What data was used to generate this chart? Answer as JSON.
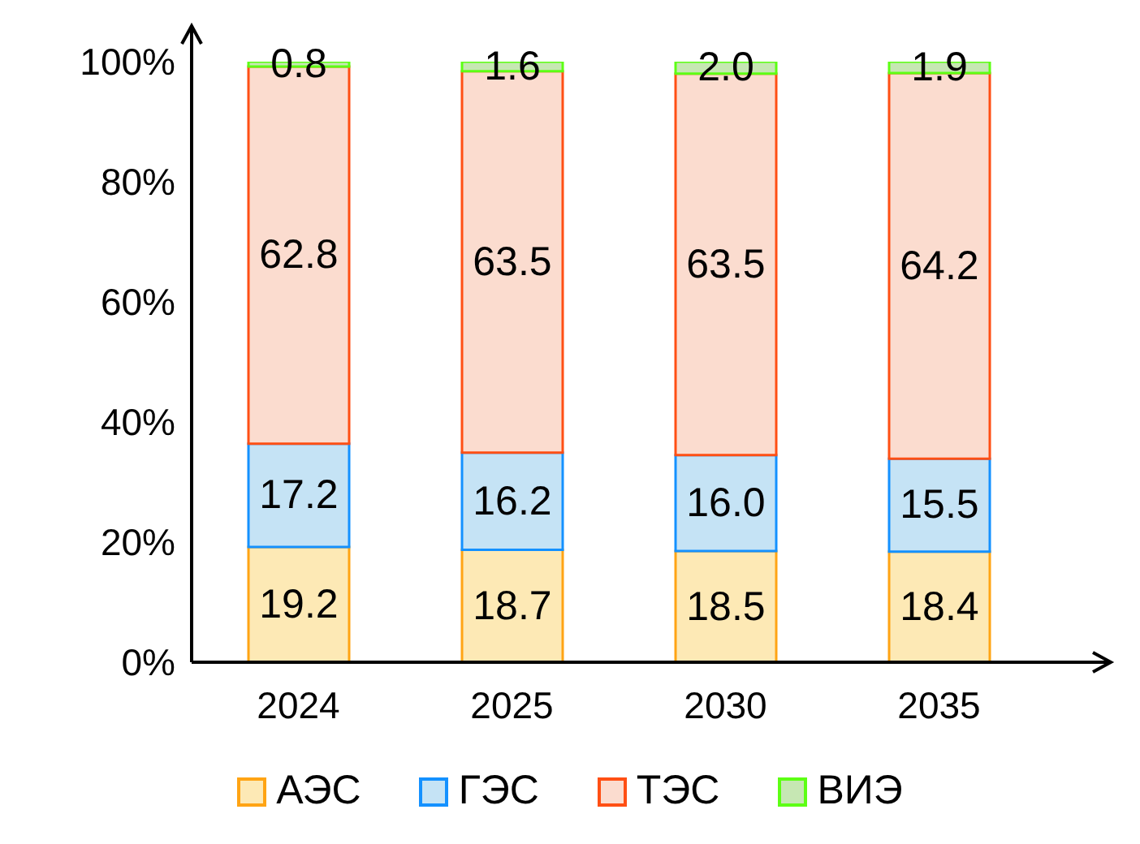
{
  "chart_data": {
    "type": "bar",
    "stacked": true,
    "categories": [
      "2024",
      "2025",
      "2030",
      "2035"
    ],
    "series": [
      {
        "name": "АЭС",
        "color": "#fde9b5",
        "values": [
          19.2,
          18.7,
          18.5,
          18.4
        ],
        "value_labels": [
          "19.2",
          "18.7",
          "18.5",
          "18.4"
        ]
      },
      {
        "name": "ГЭС",
        "color": "#c5e3f5",
        "values": [
          17.2,
          16.2,
          16.0,
          15.5
        ],
        "value_labels": [
          "17.2",
          "16.2",
          "16.0",
          "15.5"
        ]
      },
      {
        "name": "ТЭС",
        "color": "#fbdccf",
        "values": [
          62.8,
          63.5,
          63.5,
          64.2
        ],
        "value_labels": [
          "62.8",
          "63.5",
          "63.5",
          "64.2"
        ]
      },
      {
        "name": "ВИЭ",
        "color": "#c6e7b3",
        "values": [
          0.8,
          1.6,
          2.0,
          1.9
        ],
        "value_labels": [
          "0.8",
          "1.6",
          "2.0",
          "1.9"
        ]
      }
    ],
    "ylim": [
      0,
      100
    ],
    "yticks": [
      {
        "value": 0,
        "label": "0%"
      },
      {
        "value": 20,
        "label": "20%"
      },
      {
        "value": 40,
        "label": "40%"
      },
      {
        "value": 60,
        "label": "60%"
      },
      {
        "value": 80,
        "label": "80%"
      },
      {
        "value": 100,
        "label": "100%"
      }
    ],
    "legend": "bottom",
    "grid": false
  }
}
